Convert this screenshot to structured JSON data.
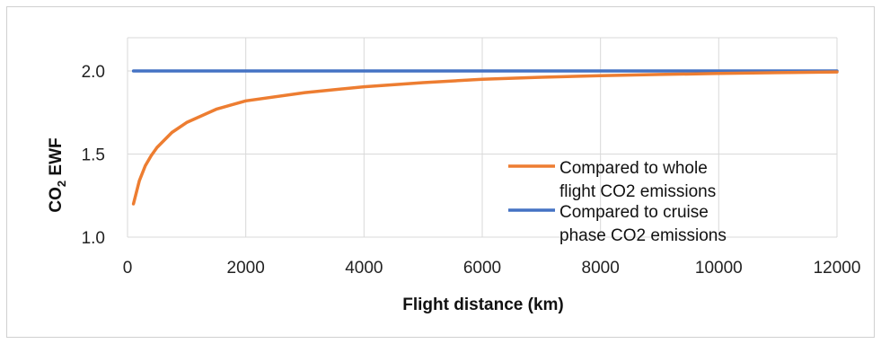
{
  "chart_data": {
    "type": "line",
    "title": "",
    "xlabel": "Flight distance (km)",
    "ylabel": {
      "prefix": "CO",
      "subscript": "2",
      "suffix": " EWF"
    },
    "xlim": [
      0,
      12000
    ],
    "ylim": [
      1.0,
      2.2
    ],
    "x_ticks": [
      0,
      2000,
      4000,
      6000,
      8000,
      10000,
      12000
    ],
    "y_ticks": [
      1.0,
      1.5,
      2.0
    ],
    "x_tick_labels": [
      "0",
      "2000",
      "4000",
      "6000",
      "8000",
      "10000",
      "12000"
    ],
    "y_tick_labels": [
      "1.0",
      "1.5",
      "2.0"
    ],
    "grid": "vertical-and-horizontal",
    "legend_position": "right-center",
    "series": [
      {
        "name": "Compared to whole flight CO2 emissions",
        "legend_lines": [
          "Compared to whole",
          "flight CO2 emissions"
        ],
        "color": "#ED7D31",
        "x": [
          100,
          200,
          300,
          400,
          500,
          750,
          1000,
          1500,
          2000,
          3000,
          4000,
          5000,
          6000,
          7000,
          8000,
          9000,
          10000,
          11000,
          12000
        ],
        "y": [
          1.2,
          1.34,
          1.43,
          1.49,
          1.54,
          1.63,
          1.69,
          1.77,
          1.82,
          1.87,
          1.905,
          1.93,
          1.95,
          1.962,
          1.972,
          1.979,
          1.985,
          1.99,
          1.994
        ]
      },
      {
        "name": "Compared to cruise phase CO2 emissions",
        "legend_lines": [
          "Compared to cruise",
          "phase CO2 emissions"
        ],
        "color": "#4472C4",
        "x": [
          100,
          12000
        ],
        "y": [
          2.0,
          2.0
        ]
      }
    ]
  }
}
